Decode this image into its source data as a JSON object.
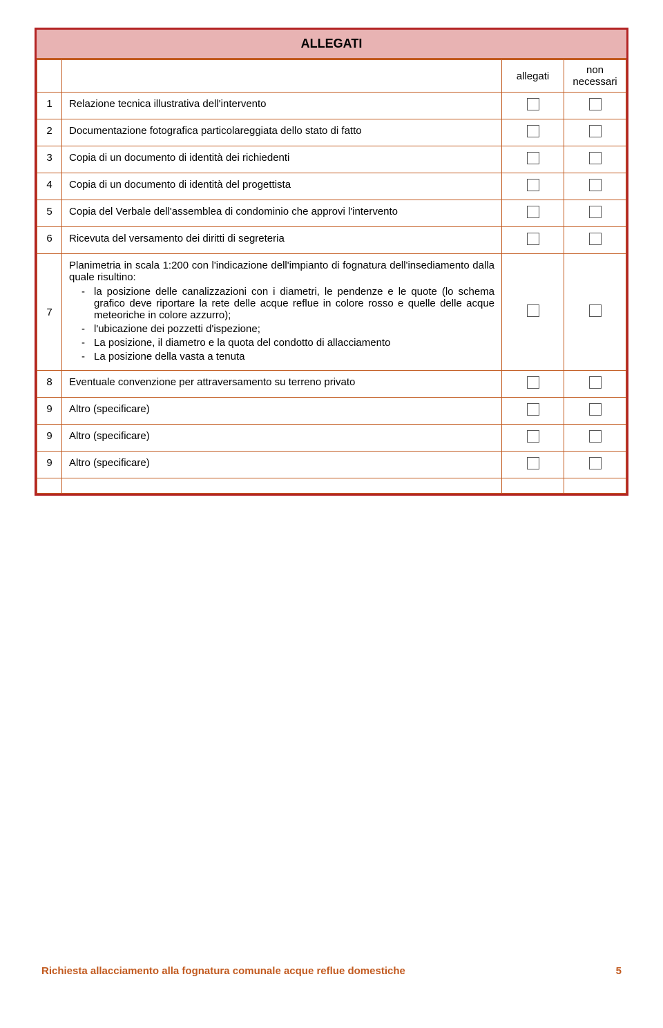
{
  "colors": {
    "frame_border": "#b32424",
    "header_bg": "#e8b3b3",
    "cell_border": "#c25a1f",
    "footer_text": "#c25a1f"
  },
  "header": {
    "title": "ALLEGATI"
  },
  "columns": {
    "allegati": "allegati",
    "non_necessari": "non\nnecessari"
  },
  "rows": [
    {
      "num": "1",
      "desc": "Relazione tecnica illustrativa dell'intervento"
    },
    {
      "num": "2",
      "desc": "Documentazione fotografica particolareggiata dello stato di fatto"
    },
    {
      "num": "3",
      "desc": "Copia di un documento di identità dei richiedenti"
    },
    {
      "num": "4",
      "desc": "Copia di un documento di identità del progettista"
    },
    {
      "num": "5",
      "desc": "Copia del Verbale dell'assemblea di condominio che approvi l'intervento"
    },
    {
      "num": "6",
      "desc": "Ricevuta del versamento dei diritti di segreteria"
    },
    {
      "num": "7",
      "intro": "Planimetria in scala 1:200 con l'indicazione dell'impianto di fognatura dell'insediamento dalla quale risultino:",
      "bullets": [
        "la posizione delle canalizzazioni con i diametri, le pendenze e le quote (lo schema grafico deve riportare la rete delle acque reflue in colore rosso e quelle delle acque meteoriche in colore azzurro);",
        "l'ubicazione dei pozzetti d'ispezione;",
        "La posizione, il diametro e la quota del condotto di allacciamento",
        "La posizione della vasta a tenuta"
      ]
    },
    {
      "num": "8",
      "desc": "Eventuale convenzione per attraversamento su terreno privato"
    },
    {
      "num": "9",
      "desc": "Altro (specificare)"
    },
    {
      "num": "9",
      "desc": "Altro (specificare)"
    },
    {
      "num": "9",
      "desc": "Altro (specificare)"
    }
  ],
  "footer": {
    "text": "Richiesta allacciamento alla fognatura comunale acque reflue domestiche",
    "page": "5"
  }
}
